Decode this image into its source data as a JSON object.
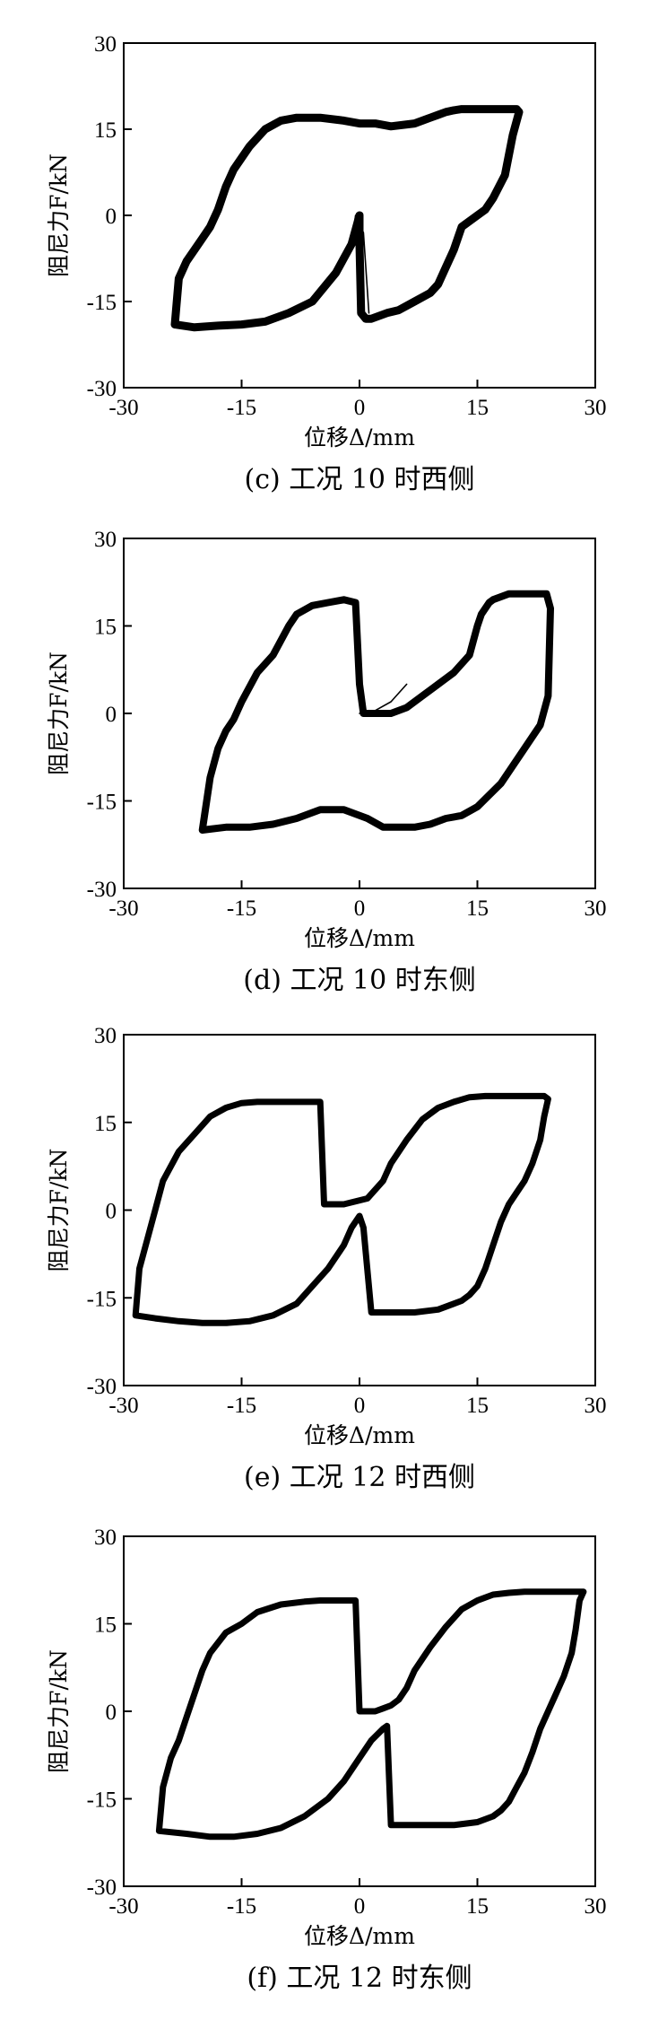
{
  "chart_data": [
    {
      "type": "line",
      "caption": "(c)  工况 10 时西侧",
      "xlabel": "位移Δ/mm",
      "ylabel": "阻尼力F/kN",
      "xlim": [
        -30,
        30
      ],
      "ylim": [
        -30,
        30
      ],
      "xticks": [
        -30,
        -15,
        0,
        15,
        30
      ],
      "yticks": [
        -30,
        -15,
        0,
        15,
        30
      ],
      "grid": false,
      "series": [
        {
          "stroke": 9,
          "x": [
            -23.5,
            -21,
            -18,
            -15,
            -12,
            -9,
            -6,
            -3,
            -1,
            0,
            0,
            0.2,
            0.8,
            1.5,
            3.5,
            5,
            7,
            9,
            10,
            11,
            12,
            13,
            15,
            16,
            17,
            18.5,
            19.5,
            20.3,
            20,
            19.5,
            18.5,
            17.5,
            16,
            14,
            13,
            12,
            11,
            10,
            9,
            7,
            4,
            2,
            0,
            -2,
            -5,
            -8,
            -10,
            -12,
            -14,
            -16,
            -17,
            -18,
            -19,
            -20,
            -21,
            -22,
            -23,
            -23.5
          ],
          "y": [
            -19,
            -19.5,
            -19.2,
            -19,
            -18.5,
            -17,
            -15,
            -10,
            -5,
            0,
            -5,
            -17,
            -18,
            -18,
            -17,
            -16.5,
            -15,
            -13.5,
            -12,
            -9,
            -6,
            -2,
            0,
            1,
            3,
            7,
            14,
            18,
            18.5,
            18.5,
            18.5,
            18.5,
            18.5,
            18.5,
            18.5,
            18.3,
            18,
            17.5,
            17,
            16,
            15.5,
            16,
            16,
            16.5,
            17,
            17,
            16.5,
            15,
            12,
            8,
            5,
            1,
            -2,
            -4,
            -6,
            -8,
            -11,
            -19
          ]
        },
        {
          "stroke": 1.6,
          "x": [
            -1,
            -0.5,
            0.5,
            1.2
          ],
          "y": [
            -5,
            0,
            -3,
            -17
          ]
        }
      ]
    },
    {
      "type": "line",
      "caption": "(d)  工况 10 时东侧",
      "xlabel": "位移Δ/mm",
      "ylabel": "阻尼力F/kN",
      "xlim": [
        -30,
        30
      ],
      "ylim": [
        -30,
        30
      ],
      "xticks": [
        -30,
        -15,
        0,
        15,
        30
      ],
      "yticks": [
        -30,
        -15,
        0,
        15,
        30
      ],
      "grid": false,
      "series": [
        {
          "stroke": 8,
          "x": [
            -20,
            -17,
            -14,
            -11,
            -8,
            -5,
            -2,
            1,
            3,
            5,
            7,
            9,
            11,
            13,
            15,
            18,
            21,
            23,
            24,
            24.3,
            23.8,
            23,
            22,
            21,
            20,
            19,
            18,
            17,
            16.5,
            15.5,
            15,
            14,
            12,
            10,
            8,
            6,
            4,
            2,
            0.5,
            0,
            -0.5,
            -2,
            -4,
            -6,
            -8,
            -9,
            -11,
            -13,
            -15,
            -16,
            -17,
            -18,
            -19,
            -20
          ],
          "y": [
            -20,
            -19.5,
            -19.5,
            -19,
            -18,
            -16.5,
            -16.5,
            -18,
            -19.5,
            -19.5,
            -19.5,
            -19,
            -18,
            -17.5,
            -16,
            -12,
            -6,
            -2,
            3,
            18,
            20.5,
            20.5,
            20.5,
            20.5,
            20.5,
            20.5,
            20,
            19.5,
            19,
            17,
            15,
            10,
            7,
            5,
            3,
            1,
            0,
            0,
            0,
            5,
            19,
            19.5,
            19,
            18.5,
            17,
            15,
            10,
            7,
            2,
            -1,
            -3,
            -6,
            -11,
            -20
          ]
        },
        {
          "stroke": 1.6,
          "x": [
            0,
            2,
            4,
            6
          ],
          "y": [
            0,
            0.5,
            2,
            5
          ]
        }
      ]
    },
    {
      "type": "line",
      "caption": "(e)  工况 12 时西侧",
      "xlabel": "位移Δ/mm",
      "ylabel": "阻尼力F/kN",
      "xlim": [
        -30,
        30
      ],
      "ylim": [
        -30,
        30
      ],
      "xticks": [
        -30,
        -15,
        0,
        15,
        30
      ],
      "yticks": [
        -30,
        -15,
        0,
        15,
        30
      ],
      "grid": false,
      "series": [
        {
          "stroke": 7,
          "x": [
            -28.5,
            -26,
            -23,
            -20,
            -17,
            -14,
            -11,
            -8,
            -6,
            -4,
            -2,
            -1,
            0,
            0.5,
            1.5,
            4,
            7,
            10,
            12,
            13,
            14,
            15,
            16,
            17,
            18,
            19,
            20,
            21,
            22,
            23,
            23.5,
            24,
            23.5,
            22,
            20,
            18,
            16,
            14,
            12,
            10,
            8,
            6,
            4,
            3,
            1,
            -2,
            -3,
            -4,
            -4.5,
            -5,
            -7,
            -10,
            -13,
            -15,
            -17,
            -19,
            -21,
            -23,
            -25,
            -26,
            -27,
            -28,
            -28.5
          ],
          "y": [
            -18,
            -18.5,
            -19,
            -19.3,
            -19.3,
            -19,
            -18,
            -16,
            -13,
            -10,
            -6,
            -3,
            -1,
            -3,
            -17.5,
            -17.5,
            -17.5,
            -17,
            -16,
            -15.5,
            -14.5,
            -13,
            -10,
            -6,
            -2,
            1,
            3,
            5,
            8,
            12,
            16,
            19,
            19.5,
            19.5,
            19.5,
            19.5,
            19.5,
            19.3,
            18.5,
            17.5,
            15.5,
            12,
            8,
            5,
            2,
            1,
            1,
            1,
            1,
            18.5,
            18.5,
            18.5,
            18.5,
            18.3,
            17.5,
            16,
            13,
            10,
            5,
            0,
            -5,
            -10,
            -18
          ]
        }
      ]
    },
    {
      "type": "line",
      "caption": "(f)  工况 12 时东侧",
      "xlabel": "位移Δ/mm",
      "ylabel": "阻尼力F/kN",
      "xlim": [
        -30,
        30
      ],
      "ylim": [
        -30,
        30
      ],
      "xticks": [
        -30,
        -15,
        0,
        15,
        30
      ],
      "yticks": [
        -30,
        -15,
        0,
        15,
        30
      ],
      "grid": false,
      "series": [
        {
          "stroke": 7,
          "x": [
            -25.5,
            -22,
            -19,
            -16,
            -13,
            -10,
            -7,
            -4,
            -2,
            0,
            1.5,
            3,
            3.5,
            4,
            4.5,
            6,
            9,
            12,
            15,
            17,
            18,
            19,
            20,
            21,
            22,
            23,
            24,
            25,
            26,
            27,
            27.5,
            28,
            28.5,
            28,
            27,
            25,
            23,
            21,
            19,
            17,
            15,
            13,
            11,
            9,
            7,
            6,
            5,
            4,
            3,
            2,
            1,
            0,
            -0.5,
            -1,
            -2,
            -3,
            -5,
            -7,
            -10,
            -13,
            -15,
            -17,
            -19,
            -20,
            -21,
            -22,
            -23,
            -24,
            -25,
            -25.5
          ],
          "y": [
            -20.5,
            -21,
            -21.5,
            -21.5,
            -21,
            -20,
            -18,
            -15,
            -12,
            -8,
            -5,
            -3,
            -2.5,
            -19.5,
            -19.5,
            -19.5,
            -19.5,
            -19.5,
            -19,
            -18,
            -17,
            -15.5,
            -13,
            -10.5,
            -7,
            -3,
            0,
            3,
            6,
            10,
            14,
            19,
            20.5,
            20.5,
            20.5,
            20.5,
            20.5,
            20.5,
            20.3,
            20,
            19,
            17.5,
            14.5,
            11,
            7,
            4,
            2,
            1,
            0.5,
            0,
            0,
            0,
            19,
            19,
            19,
            19,
            19,
            18.8,
            18.3,
            17,
            15,
            13.5,
            10,
            7,
            3,
            -1,
            -5,
            -8,
            -13,
            -20.5
          ]
        }
      ]
    }
  ]
}
